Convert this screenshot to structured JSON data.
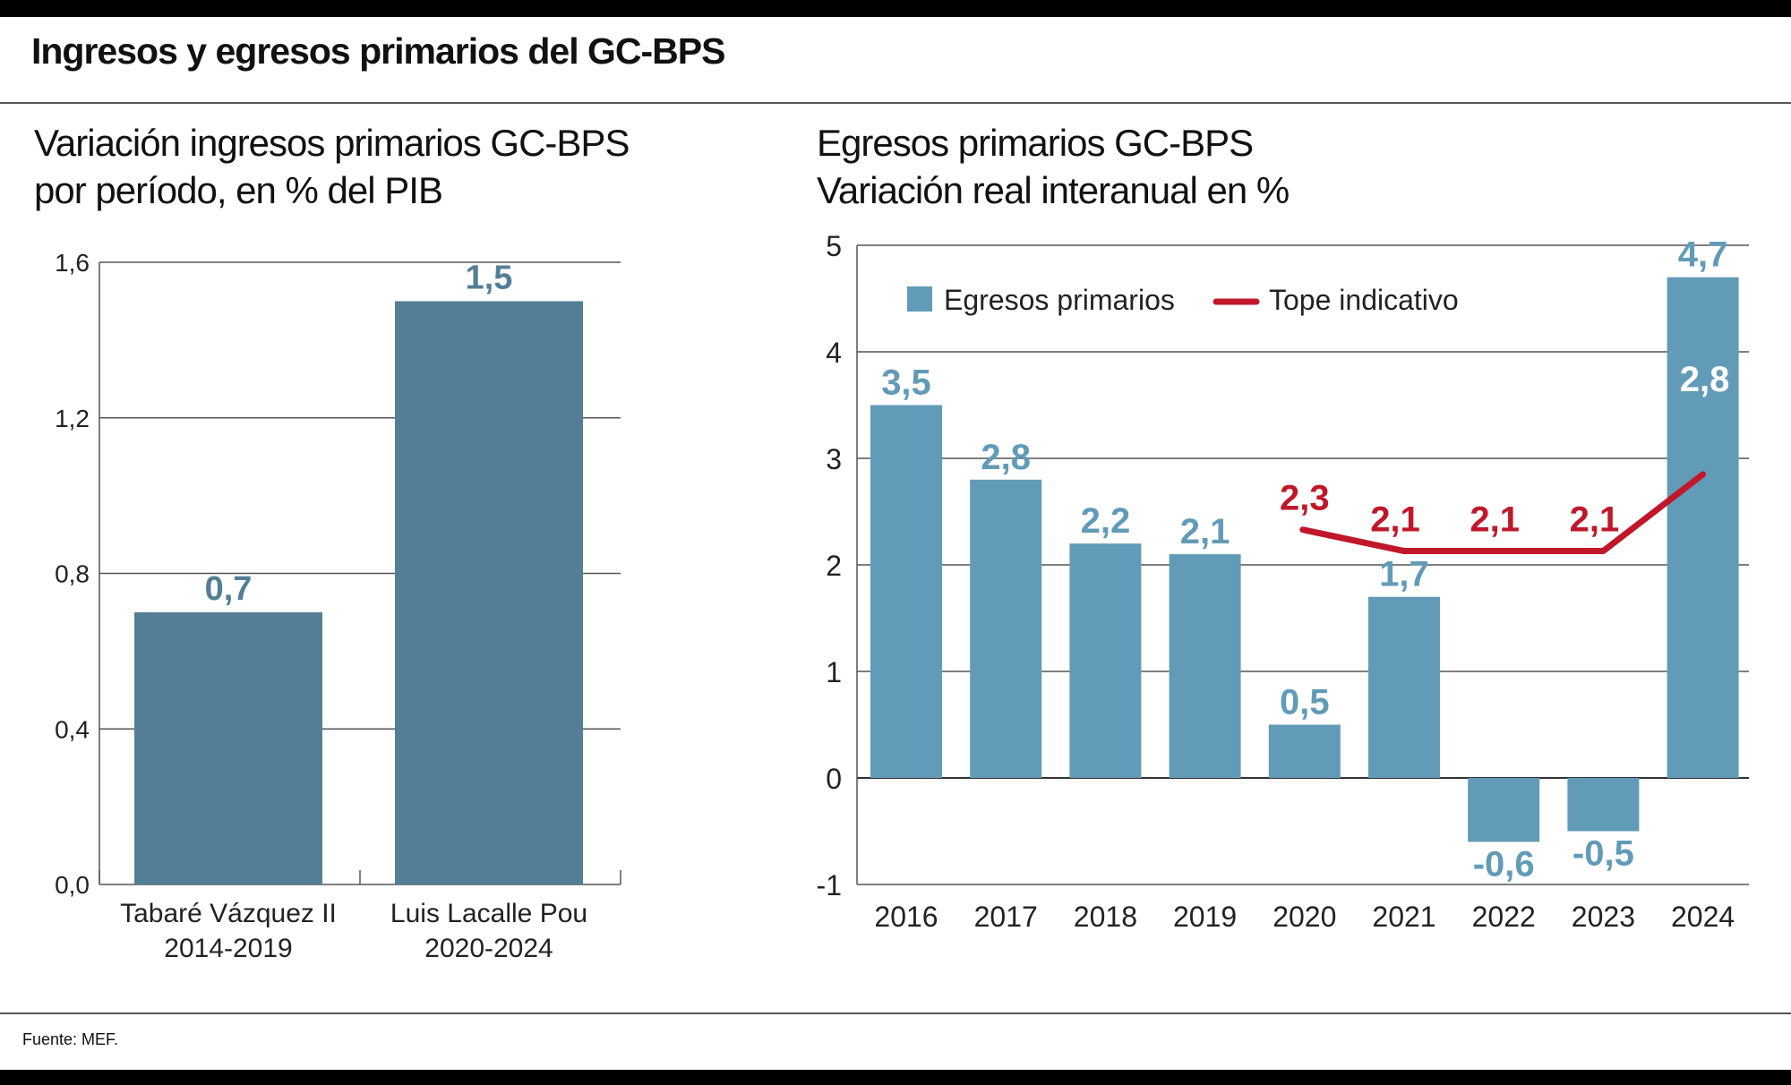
{
  "title": "Ingresos y egresos primarios del GC-BPS",
  "source": "Fuente: MEF.",
  "colors": {
    "left_bar": "#537f96",
    "right_bar": "#629bb7",
    "line": "#c0182a"
  },
  "chart_data": [
    {
      "type": "bar",
      "title_lines": [
        "Variación ingresos primarios GC-BPS",
        "por período, en % del PIB"
      ],
      "categories": [
        [
          "Tabaré Vázquez II",
          "2014-2019"
        ],
        [
          "Luis Lacalle Pou",
          "2020-2024"
        ]
      ],
      "values": [
        0.7,
        1.5
      ],
      "value_labels": [
        "0,7",
        "1,5"
      ],
      "ylim": [
        0,
        1.6
      ],
      "yticks": [
        0,
        0.4,
        0.8,
        1.2,
        1.6
      ],
      "ytick_labels": [
        "0,0",
        "0,4",
        "0,8",
        "1,2",
        "1,6"
      ],
      "grid": true
    },
    {
      "type": "bar+line",
      "title_lines": [
        "Egresos primarios GC-BPS",
        "Variación real interanual en %"
      ],
      "categories": [
        "2016",
        "2017",
        "2018",
        "2019",
        "2020",
        "2021",
        "2022",
        "2023",
        "2024"
      ],
      "series": [
        {
          "name": "Egresos primarios",
          "type": "bar",
          "values": [
            3.5,
            2.8,
            2.2,
            2.1,
            0.5,
            1.7,
            -0.6,
            -0.5,
            4.7
          ],
          "labels": [
            "3,5",
            "2,8",
            "2,2",
            "2,1",
            "0,5",
            "1,7",
            "-0,6",
            "-0,5",
            "4,7"
          ]
        },
        {
          "name": "Tope indicativo",
          "type": "line",
          "values": [
            null,
            null,
            null,
            null,
            2.33,
            2.13,
            2.13,
            2.13,
            2.85
          ],
          "labels": [
            null,
            null,
            null,
            null,
            "2,3",
            "2,1",
            "2,1",
            "2,1",
            "2,8"
          ]
        }
      ],
      "ylim": [
        -1,
        5
      ],
      "yticks": [
        -1,
        0,
        1,
        2,
        3,
        4,
        5
      ],
      "legend_position": "top-left",
      "grid": true
    }
  ]
}
